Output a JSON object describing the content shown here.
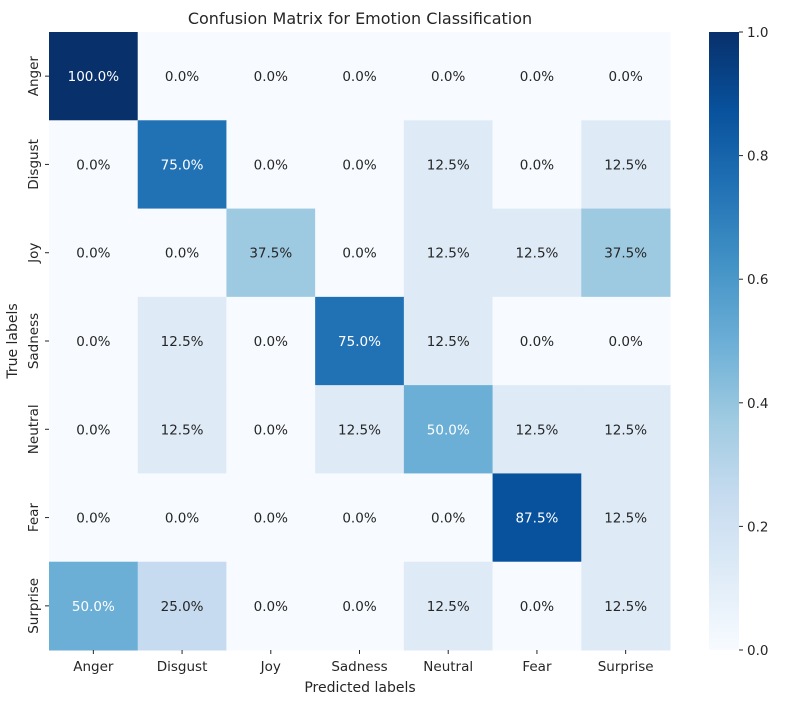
{
  "chart_data": {
    "type": "heatmap",
    "title": "Confusion Matrix for Emotion Classification",
    "xlabel": "Predicted labels",
    "ylabel": "True labels",
    "x_categories": [
      "Anger",
      "Disgust",
      "Joy",
      "Sadness",
      "Neutral",
      "Fear",
      "Surprise"
    ],
    "y_categories": [
      "Anger",
      "Disgust",
      "Joy",
      "Sadness",
      "Neutral",
      "Fear",
      "Surprise"
    ],
    "values": [
      [
        1.0,
        0.0,
        0.0,
        0.0,
        0.0,
        0.0,
        0.0
      ],
      [
        0.0,
        0.75,
        0.0,
        0.0,
        0.125,
        0.0,
        0.125
      ],
      [
        0.0,
        0.0,
        0.375,
        0.0,
        0.125,
        0.125,
        0.375
      ],
      [
        0.0,
        0.125,
        0.0,
        0.75,
        0.125,
        0.0,
        0.0
      ],
      [
        0.0,
        0.125,
        0.0,
        0.125,
        0.5,
        0.125,
        0.125
      ],
      [
        0.0,
        0.0,
        0.0,
        0.0,
        0.0,
        0.875,
        0.125
      ],
      [
        0.5,
        0.25,
        0.0,
        0.0,
        0.125,
        0.0,
        0.125
      ]
    ],
    "cell_labels": [
      [
        "100.0%",
        "0.0%",
        "0.0%",
        "0.0%",
        "0.0%",
        "0.0%",
        "0.0%"
      ],
      [
        "0.0%",
        "75.0%",
        "0.0%",
        "0.0%",
        "12.5%",
        "0.0%",
        "12.5%"
      ],
      [
        "0.0%",
        "0.0%",
        "37.5%",
        "0.0%",
        "12.5%",
        "12.5%",
        "37.5%"
      ],
      [
        "0.0%",
        "12.5%",
        "0.0%",
        "75.0%",
        "12.5%",
        "0.0%",
        "0.0%"
      ],
      [
        "0.0%",
        "12.5%",
        "0.0%",
        "12.5%",
        "50.0%",
        "12.5%",
        "12.5%"
      ],
      [
        "0.0%",
        "0.0%",
        "0.0%",
        "0.0%",
        "0.0%",
        "87.5%",
        "12.5%"
      ],
      [
        "50.0%",
        "25.0%",
        "0.0%",
        "0.0%",
        "12.5%",
        "0.0%",
        "12.5%"
      ]
    ],
    "colormap": "Blues",
    "colorbar": {
      "range": [
        0.0,
        1.0
      ],
      "ticks": [
        "0.0",
        "0.2",
        "0.4",
        "0.6",
        "0.8",
        "1.0"
      ]
    },
    "grid": false
  }
}
